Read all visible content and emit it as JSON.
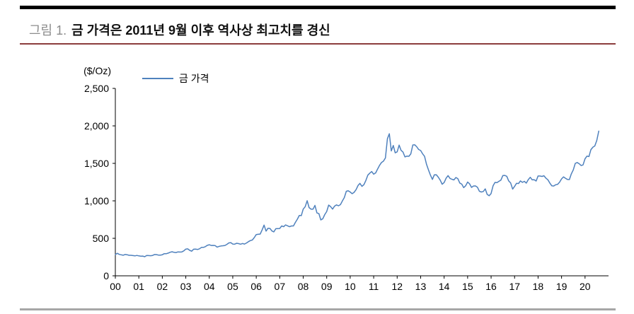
{
  "figure": {
    "label": "그림 1.",
    "title": "금 가격은 2011년 9월 이후 역사상 최고치를 경신"
  },
  "colors": {
    "top_rule": "#000000",
    "header_rule": "#8B3D3D",
    "bottom_rule": "#A6A6A6",
    "figure_label": "#8C8C8C",
    "title_text": "#111111",
    "axis": "#000000",
    "series_line": "#4F81BD"
  },
  "chart_data": {
    "type": "line",
    "title": "",
    "unit_label": "($/Oz)",
    "xlabel": "",
    "ylabel": "",
    "ylim": [
      0,
      2500
    ],
    "x_range": [
      2000,
      2021
    ],
    "grid": false,
    "legend_position": "top-left-inside",
    "x_tick_labels": [
      "00",
      "01",
      "02",
      "03",
      "04",
      "05",
      "06",
      "07",
      "08",
      "09",
      "10",
      "11",
      "12",
      "13",
      "14",
      "15",
      "16",
      "17",
      "18",
      "19",
      "20"
    ],
    "y_ticks": [
      0,
      500,
      1000,
      1500,
      2000,
      2500
    ],
    "y_tick_labels": [
      "0",
      "500",
      "1,000",
      "1,500",
      "2,000",
      "2,500"
    ],
    "series": [
      {
        "name": "금 가격",
        "color": "#4F81BD",
        "start": "2000-01",
        "frequency": "monthly",
        "values": [
          284,
          300,
          286,
          280,
          275,
          285,
          281,
          274,
          274,
          270,
          266,
          272,
          266,
          262,
          263,
          255,
          272,
          270,
          268,
          272,
          284,
          283,
          276,
          276,
          281,
          295,
          294,
          303,
          314,
          321,
          313,
          310,
          319,
          317,
          319,
          333,
          357,
          359,
          340,
          328,
          355,
          356,
          351,
          360,
          379,
          379,
          389,
          407,
          414,
          405,
          406,
          403,
          383,
          392,
          398,
          401,
          405,
          420,
          439,
          442,
          424,
          423,
          434,
          429,
          422,
          431,
          424,
          438,
          456,
          470,
          477,
          510,
          550,
          555,
          557,
          611,
          676,
          596,
          634,
          632,
          598,
          586,
          628,
          630,
          631,
          665,
          655,
          679,
          667,
          655,
          665,
          665,
          713,
          755,
          806,
          803,
          890,
          922,
          1002,
          910,
          889,
          889,
          940,
          839,
          829,
          745,
          761,
          816,
          858,
          943,
          924,
          890,
          929,
          946,
          934,
          949,
          997,
          1043,
          1127,
          1135,
          1118,
          1095,
          1113,
          1149,
          1205,
          1233,
          1193,
          1216,
          1271,
          1342,
          1370,
          1391,
          1356,
          1373,
          1424,
          1474,
          1512,
          1529,
          1573,
          1828,
          1895,
          1666,
          1739,
          1641,
          1654,
          1743,
          1674,
          1650,
          1586,
          1597,
          1594,
          1627,
          1745,
          1747,
          1722,
          1685,
          1671,
          1628,
          1593,
          1487,
          1414,
          1343,
          1286,
          1347,
          1348,
          1316,
          1276,
          1222,
          1244,
          1301,
          1337,
          1299,
          1288,
          1279,
          1311,
          1296,
          1238,
          1223,
          1176,
          1201,
          1251,
          1227,
          1179,
          1198,
          1199,
          1182,
          1128,
          1118,
          1125,
          1159,
          1086,
          1068,
          1097,
          1200,
          1246,
          1242,
          1260,
          1276,
          1337,
          1340,
          1327,
          1266,
          1238,
          1157,
          1192,
          1234,
          1231,
          1266,
          1246,
          1260,
          1237,
          1283,
          1314,
          1280,
          1282,
          1264,
          1331,
          1331,
          1325,
          1335,
          1303,
          1281,
          1238,
          1201,
          1198,
          1215,
          1221,
          1250,
          1292,
          1320,
          1301,
          1286,
          1284,
          1359,
          1413,
          1500,
          1511,
          1495,
          1471,
          1479,
          1561,
          1597,
          1591,
          1683,
          1716,
          1732,
          1806,
          1930
        ]
      }
    ]
  }
}
